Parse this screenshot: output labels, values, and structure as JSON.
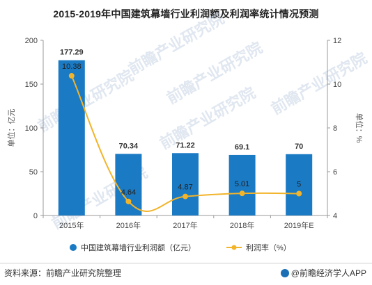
{
  "chart_data": {
    "type": "bar",
    "title": "2015-2019年中国建筑幕墙行业利润额及利润率统计情况预测",
    "categories": [
      "2015年",
      "2016年",
      "2017年",
      "2018年",
      "2019年E"
    ],
    "series": [
      {
        "name": "中国建筑幕墙行业利润额（亿元）",
        "type": "bar",
        "axis": "left",
        "values": [
          177.29,
          70.34,
          71.22,
          69.1,
          70
        ],
        "labels": [
          "177.29",
          "70.34",
          "71.22",
          "69.1",
          "70"
        ],
        "color": "#1a7ac4"
      },
      {
        "name": "利润率（%）",
        "type": "line",
        "axis": "right",
        "values": [
          10.38,
          4.64,
          4.87,
          5.01,
          5
        ],
        "labels": [
          "10.38",
          "4.64",
          "4.87",
          "5.01",
          "5"
        ],
        "color": "#f2b42a"
      }
    ],
    "ylabel_left": "单位：亿元",
    "ylabel_right": "单位：%",
    "ylim_left": [
      0,
      200
    ],
    "yticks_left": [
      "0",
      "50",
      "100",
      "150",
      "200"
    ],
    "ylim_right": [
      4,
      12
    ],
    "yticks_right": [
      "4",
      "6",
      "8",
      "10",
      "12"
    ],
    "grid": false,
    "legend": "bottom"
  },
  "watermark": "前瞻产业研究院",
  "footer": {
    "source": "资料来源：前瞻产业研究院整理",
    "brand": "@前瞻经济学人APP"
  },
  "colors": {
    "bar": "#1a7ac4",
    "line": "#f2b42a",
    "axis": "#999999"
  }
}
